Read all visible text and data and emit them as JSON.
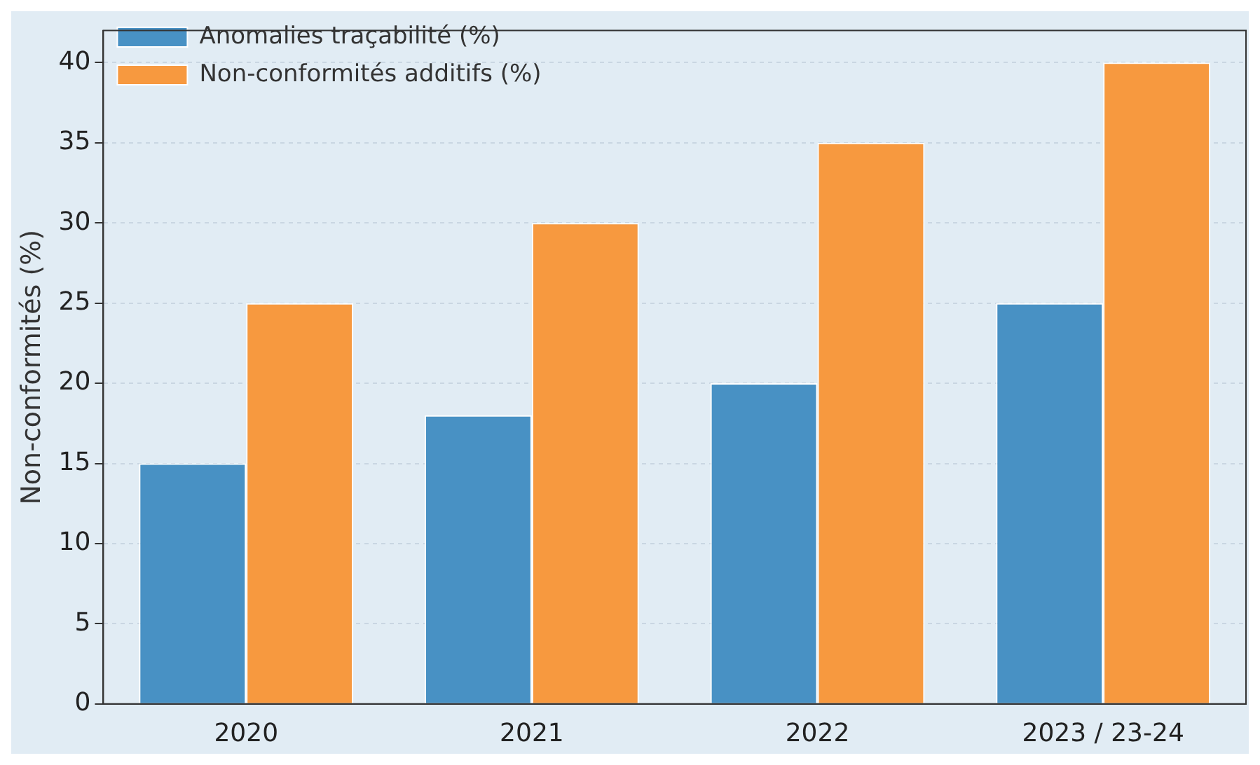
{
  "chart_data": {
    "type": "bar",
    "ylabel": "Non-conformités (%)",
    "categories": [
      "2020",
      "2021",
      "2022",
      "2023 / 23-24"
    ],
    "series": [
      {
        "name": "Anomalies traçabilité (%)",
        "color": "#4891c4",
        "values": [
          15,
          18,
          20,
          25
        ]
      },
      {
        "name": "Non-conformités additifs (%)",
        "color": "#f7993f",
        "values": [
          25,
          30,
          35,
          40
        ]
      }
    ],
    "ylim": [
      0,
      42
    ],
    "yticks": [
      0,
      5,
      10,
      15,
      20,
      25,
      30,
      35,
      40
    ],
    "grid": "y",
    "legend": "top left"
  }
}
